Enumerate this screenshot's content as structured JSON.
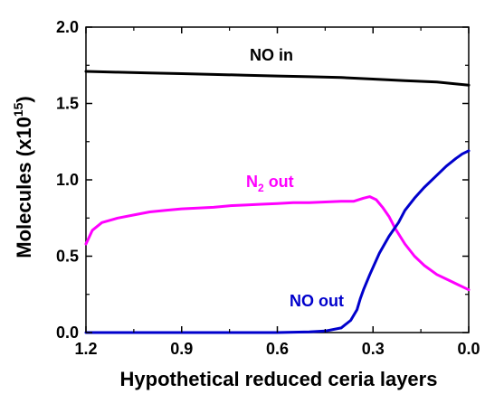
{
  "chart_data": {
    "type": "line",
    "xlabel": "Hypothetical reduced ceria layers",
    "ylabel_main": "Molecules (x10",
    "ylabel_exp": "15",
    "ylabel_close": ")",
    "xlim": [
      1.2,
      0.0
    ],
    "ylim": [
      0.0,
      2.0
    ],
    "x_reversed": true,
    "x_ticks": [
      1.2,
      0.9,
      0.6,
      0.3,
      0.0
    ],
    "x_tick_labels": [
      "1.2",
      "0.9",
      "0.6",
      "0.3",
      "0.0"
    ],
    "y_ticks": [
      0.0,
      0.5,
      1.0,
      1.5,
      2.0
    ],
    "y_tick_labels": [
      "0.0",
      "0.5",
      "1.0",
      "1.5",
      "2.0"
    ],
    "grid": false,
    "legend": "none",
    "annotations": {
      "no_in": "NO in",
      "n2_out_main": "N",
      "n2_out_sub": "2",
      "n2_out_rest": " out",
      "no_out": "NO out"
    },
    "series": [
      {
        "key": "no_in",
        "color": "#000000",
        "x": [
          1.2,
          1.1,
          1.0,
          0.9,
          0.8,
          0.7,
          0.6,
          0.5,
          0.4,
          0.3,
          0.2,
          0.1,
          0.0
        ],
        "y": [
          1.71,
          1.705,
          1.7,
          1.695,
          1.69,
          1.685,
          1.68,
          1.675,
          1.67,
          1.66,
          1.65,
          1.64,
          1.62
        ]
      },
      {
        "key": "n2_out",
        "color": "#ff00ff",
        "x": [
          1.2,
          1.18,
          1.15,
          1.1,
          1.05,
          1.0,
          0.95,
          0.9,
          0.85,
          0.8,
          0.75,
          0.7,
          0.65,
          0.6,
          0.55,
          0.5,
          0.45,
          0.4,
          0.36,
          0.33,
          0.31,
          0.29,
          0.27,
          0.25,
          0.23,
          0.2,
          0.17,
          0.14,
          0.1,
          0.06,
          0.03,
          0.0
        ],
        "y": [
          0.58,
          0.67,
          0.72,
          0.75,
          0.77,
          0.79,
          0.8,
          0.81,
          0.815,
          0.82,
          0.83,
          0.835,
          0.84,
          0.845,
          0.85,
          0.85,
          0.855,
          0.86,
          0.86,
          0.88,
          0.89,
          0.87,
          0.82,
          0.76,
          0.68,
          0.58,
          0.5,
          0.44,
          0.38,
          0.34,
          0.31,
          0.28
        ]
      },
      {
        "key": "no_out",
        "color": "#0000cc",
        "x": [
          1.2,
          1.0,
          0.8,
          0.6,
          0.5,
          0.45,
          0.4,
          0.37,
          0.35,
          0.34,
          0.33,
          0.31,
          0.28,
          0.25,
          0.22,
          0.2,
          0.17,
          0.14,
          0.1,
          0.07,
          0.04,
          0.02,
          0.0
        ],
        "y": [
          0.0,
          0.0,
          0.0,
          0.0,
          0.005,
          0.01,
          0.03,
          0.08,
          0.15,
          0.22,
          0.28,
          0.38,
          0.52,
          0.63,
          0.72,
          0.8,
          0.88,
          0.95,
          1.03,
          1.09,
          1.14,
          1.17,
          1.19
        ]
      }
    ]
  }
}
